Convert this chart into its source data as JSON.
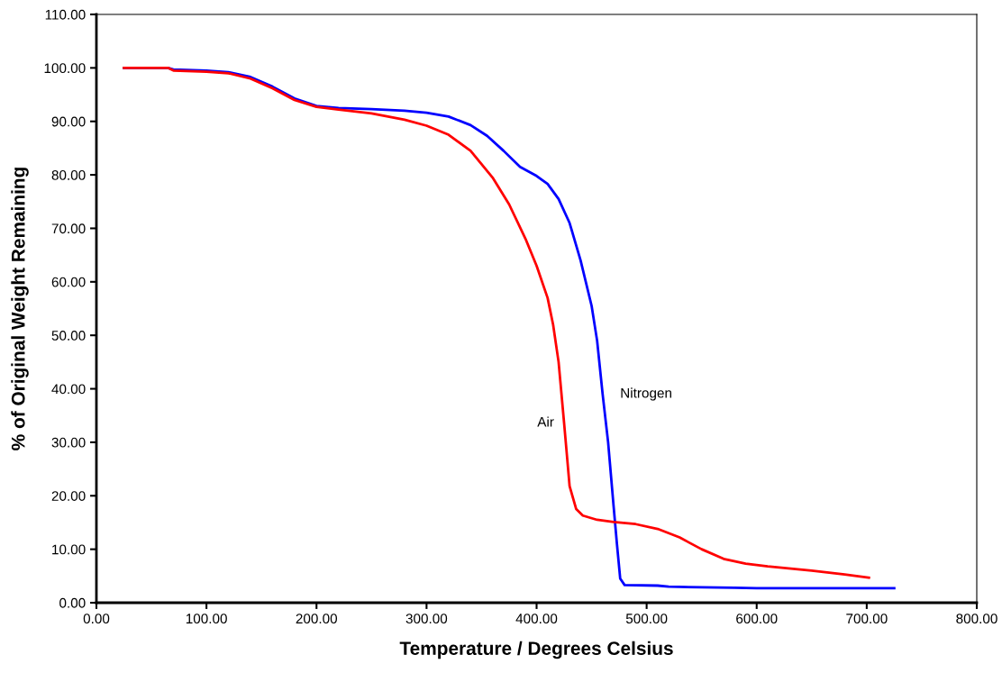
{
  "chart_data": {
    "type": "line",
    "xlabel": "Temperature / Degrees Celsius",
    "ylabel": "% of Original Weight Remaining",
    "xlim": [
      0,
      800
    ],
    "ylim": [
      0,
      110
    ],
    "xticks": [
      {
        "value": 0,
        "label": "0.00"
      },
      {
        "value": 100,
        "label": "100.00"
      },
      {
        "value": 200,
        "label": "200.00"
      },
      {
        "value": 300,
        "label": "300.00"
      },
      {
        "value": 400,
        "label": "400.00"
      },
      {
        "value": 500,
        "label": "500.00"
      },
      {
        "value": 600,
        "label": "600.00"
      },
      {
        "value": 700,
        "label": "700.00"
      },
      {
        "value": 800,
        "label": "800.00"
      }
    ],
    "yticks": [
      {
        "value": 0,
        "label": "0.00"
      },
      {
        "value": 10,
        "label": "10.00"
      },
      {
        "value": 20,
        "label": "20.00"
      },
      {
        "value": 30,
        "label": "30.00"
      },
      {
        "value": 40,
        "label": "40.00"
      },
      {
        "value": 50,
        "label": "50.00"
      },
      {
        "value": 60,
        "label": "60.00"
      },
      {
        "value": 70,
        "label": "70.00"
      },
      {
        "value": 80,
        "label": "80.00"
      },
      {
        "value": 90,
        "label": "90.00"
      },
      {
        "value": 100,
        "label": "100.00"
      },
      {
        "value": 110,
        "label": "110.00"
      }
    ],
    "grid": false,
    "legend": false,
    "marker": "none",
    "line_style": "solid",
    "series": [
      {
        "name": "Nitrogen",
        "color": "#0000ff",
        "x": [
          25,
          65,
          70,
          100,
          120,
          140,
          160,
          180,
          200,
          220,
          250,
          280,
          300,
          320,
          340,
          355,
          370,
          385,
          400,
          410,
          420,
          430,
          440,
          450,
          455,
          460,
          465,
          470,
          473,
          476,
          480,
          510,
          520,
          580,
          600,
          725
        ],
        "values": [
          100,
          100,
          99.7,
          99.5,
          99.2,
          98.3,
          96.5,
          94.3,
          92.9,
          92.5,
          92.3,
          92.0,
          91.6,
          90.9,
          89.3,
          87.3,
          84.5,
          81.5,
          79.8,
          78.3,
          75.5,
          71.0,
          64.0,
          55.5,
          49,
          39,
          30,
          18,
          11,
          4.5,
          3.3,
          3.2,
          3.0,
          2.8,
          2.7,
          2.7
        ]
      },
      {
        "name": "Air",
        "color": "#ff0000",
        "x": [
          25,
          65,
          70,
          100,
          120,
          140,
          160,
          180,
          200,
          220,
          250,
          280,
          300,
          320,
          340,
          360,
          375,
          390,
          400,
          410,
          415,
          420,
          425,
          430,
          436,
          442,
          455,
          470,
          490,
          510,
          530,
          550,
          570,
          590,
          610,
          650,
          680,
          702
        ],
        "values": [
          100,
          100,
          99.5,
          99.3,
          99.0,
          98.0,
          96.2,
          94.0,
          92.7,
          92.2,
          91.5,
          90.3,
          89.2,
          87.5,
          84.5,
          79.5,
          74.5,
          68,
          63,
          57,
          52,
          45,
          33.6,
          21.8,
          17.5,
          16.3,
          15.5,
          15.1,
          14.7,
          13.8,
          12.2,
          10,
          8.2,
          7.3,
          6.8,
          6.0,
          5.3,
          4.7
        ]
      }
    ]
  }
}
